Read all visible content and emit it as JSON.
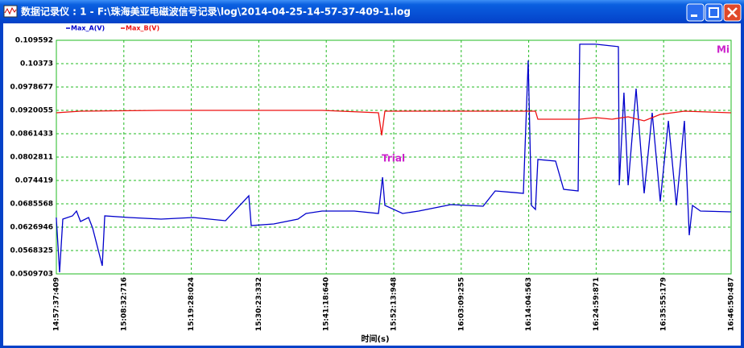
{
  "window": {
    "title": "数据记录仪 : 1 - F:\\珠海美亚电磁波信号记录\\log\\2014-04-25-14-57-37-409-1.log"
  },
  "chart_data": {
    "type": "line",
    "xlabel": "时间(s)",
    "xlim": [
      53857.409,
      60410.487
    ],
    "xticks": [
      {
        "value": 53857.409,
        "label": "14:57:37:409"
      },
      {
        "value": 54512.716,
        "label": "15:08:32:716"
      },
      {
        "value": 55168.024,
        "label": "15:19:28:024"
      },
      {
        "value": 55823.332,
        "label": "15:30:23:332"
      },
      {
        "value": 56478.64,
        "label": "15:41:18:640"
      },
      {
        "value": 57133.948,
        "label": "15:52:13:948"
      },
      {
        "value": 57789.255,
        "label": "16:03:09:255"
      },
      {
        "value": 58444.563,
        "label": "16:14:04:563"
      },
      {
        "value": 59099.871,
        "label": "16:24:59:871"
      },
      {
        "value": 59755.179,
        "label": "16:35:55:179"
      },
      {
        "value": 60410.487,
        "label": "16:46:50:487"
      }
    ],
    "ylim": [
      0.0509703,
      0.109592
    ],
    "yticks": [
      0.0509703,
      0.0568325,
      0.0626946,
      0.0685568,
      0.074419,
      0.0802811,
      0.0861433,
      0.0920055,
      0.0978677,
      0.10373,
      0.109592
    ],
    "grid": true,
    "series": [
      {
        "name": "Max_A(V)",
        "color": "#0000cc",
        "x": [
          53857,
          53889,
          53920,
          54014,
          54053,
          54092,
          54170,
          54209,
          54303,
          54327,
          54561,
          54874,
          55187,
          55500,
          55726,
          55750,
          55969,
          56203,
          56282,
          56438,
          56751,
          56985,
          57025,
          57048,
          57220,
          57376,
          57689,
          58002,
          58119,
          58393,
          58440,
          58471,
          58510,
          58534,
          58706,
          58784,
          58925,
          58940,
          59097,
          59316,
          59324,
          59370,
          59410,
          59488,
          59566,
          59644,
          59722,
          59801,
          59879,
          59957,
          60004,
          60035,
          60113,
          60410
        ],
        "values": [
          0.06512,
          0.05138,
          0.06472,
          0.06553,
          0.06674,
          0.06411,
          0.06512,
          0.06249,
          0.05299,
          0.06553,
          0.06512,
          0.06472,
          0.06512,
          0.06431,
          0.07058,
          0.0631,
          0.0635,
          0.06472,
          0.06613,
          0.06674,
          0.06674,
          0.06613,
          0.07523,
          0.06815,
          0.06613,
          0.06674,
          0.06836,
          0.06795,
          0.07179,
          0.07119,
          0.1045,
          0.06815,
          0.06714,
          0.07968,
          0.07927,
          0.0722,
          0.07179,
          0.1086,
          0.1086,
          0.108,
          0.07321,
          0.09645,
          0.07321,
          0.09746,
          0.07119,
          0.0914,
          0.06916,
          0.08938,
          0.06815,
          0.08938,
          0.06067,
          0.06815,
          0.06674,
          0.06654
        ]
      },
      {
        "name": "Max_B(V)",
        "color": "#ee1111",
        "x": [
          53857,
          54092,
          54874,
          55656,
          56438,
          56985,
          57017,
          57048,
          58002,
          58510,
          58534,
          58940,
          59097,
          59253,
          59410,
          59566,
          59722,
          59957,
          60410
        ],
        "values": [
          0.0914,
          0.0918,
          0.09201,
          0.09201,
          0.09201,
          0.0914,
          0.08574,
          0.0918,
          0.0918,
          0.0918,
          0.08978,
          0.08978,
          0.09019,
          0.08978,
          0.09039,
          0.08938,
          0.091,
          0.0918,
          0.0914
        ]
      }
    ],
    "annotations": [
      "Trial",
      "Mi"
    ]
  }
}
